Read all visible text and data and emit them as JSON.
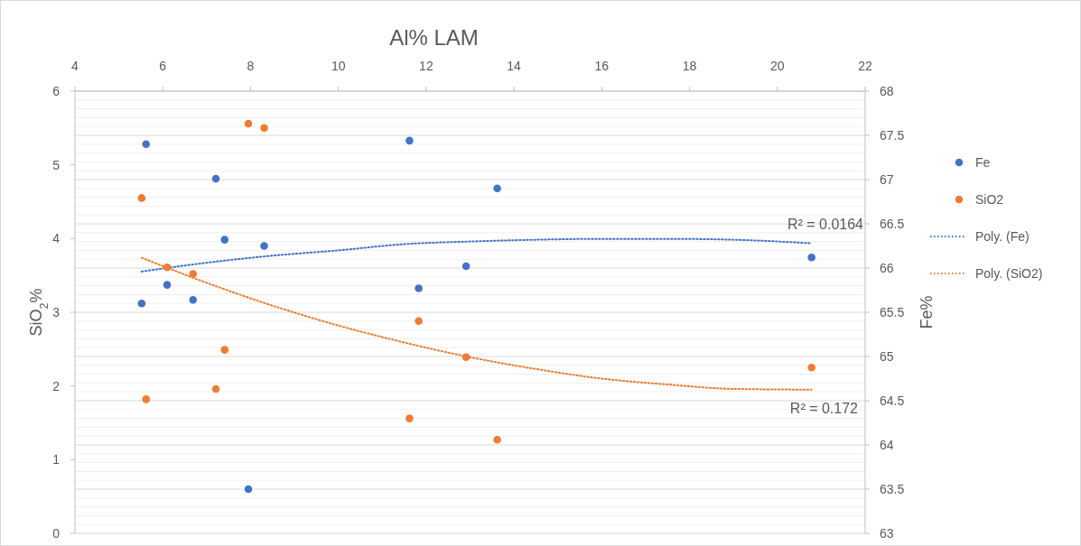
{
  "chart_data": {
    "type": "scatter",
    "title": "Al% LAM",
    "ylabel": "SiO$_{2}$%",
    "y2label": "Fe%",
    "xlim": [
      4,
      22
    ],
    "xticks": [
      4,
      6,
      8,
      10,
      12,
      14,
      16,
      18,
      20,
      22
    ],
    "ylim": [
      0,
      6
    ],
    "yticks": [
      0,
      1,
      2,
      3,
      4,
      5,
      6
    ],
    "y2lim": [
      63,
      68
    ],
    "y2ticks": [
      63,
      63.5,
      64,
      64.5,
      65,
      65.5,
      66,
      66.5,
      67,
      67.5,
      68
    ],
    "grid": "y",
    "legend": "right",
    "marker": "circle",
    "series": [
      {
        "name": "Fe",
        "color": "#4472c4",
        "axis": "y2",
        "x": [
          5.52,
          5.62,
          6.1,
          6.69,
          7.21,
          7.41,
          7.95,
          8.31,
          11.62,
          11.83,
          12.91,
          13.62,
          20.78
        ],
        "values": [
          65.6,
          67.4,
          65.81,
          65.64,
          67.01,
          66.32,
          63.5,
          66.25,
          67.44,
          65.77,
          66.02,
          66.9,
          66.12
        ]
      },
      {
        "name": "SiO2",
        "color": "#ed7d31",
        "x": [
          5.52,
          5.62,
          6.1,
          6.69,
          7.21,
          7.41,
          7.95,
          8.31,
          11.62,
          11.83,
          12.91,
          13.62,
          20.78
        ],
        "values": [
          4.55,
          1.82,
          3.61,
          3.52,
          1.96,
          2.49,
          5.56,
          5.5,
          1.56,
          2.88,
          2.39,
          1.27,
          2.25
        ]
      },
      {
        "name": "Poly. (Fe)",
        "type": "line",
        "marker": "none",
        "line_style": "dotted",
        "color": "#4472c4",
        "axis": "y2",
        "x": [
          5.52,
          7,
          8.5,
          10,
          11.5,
          13,
          14.5,
          16,
          17.5,
          19,
          20.78
        ],
        "values": [
          65.96,
          66.06,
          66.14,
          66.2,
          66.27,
          66.3,
          66.32,
          66.33,
          66.33,
          66.32,
          66.28
        ]
      },
      {
        "name": "Poly. (SiO2)",
        "type": "line",
        "marker": "none",
        "line_style": "dotted",
        "color": "#ed7d31",
        "x": [
          5.52,
          7,
          8.5,
          10,
          11.5,
          13,
          14.5,
          16,
          17.5,
          19,
          20.78
        ],
        "values": [
          3.74,
          3.4,
          3.09,
          2.82,
          2.59,
          2.39,
          2.23,
          2.1,
          2.02,
          1.96,
          1.95
        ]
      }
    ],
    "annotations": [
      "R² = 0.0164",
      "R² = 0.172"
    ]
  }
}
